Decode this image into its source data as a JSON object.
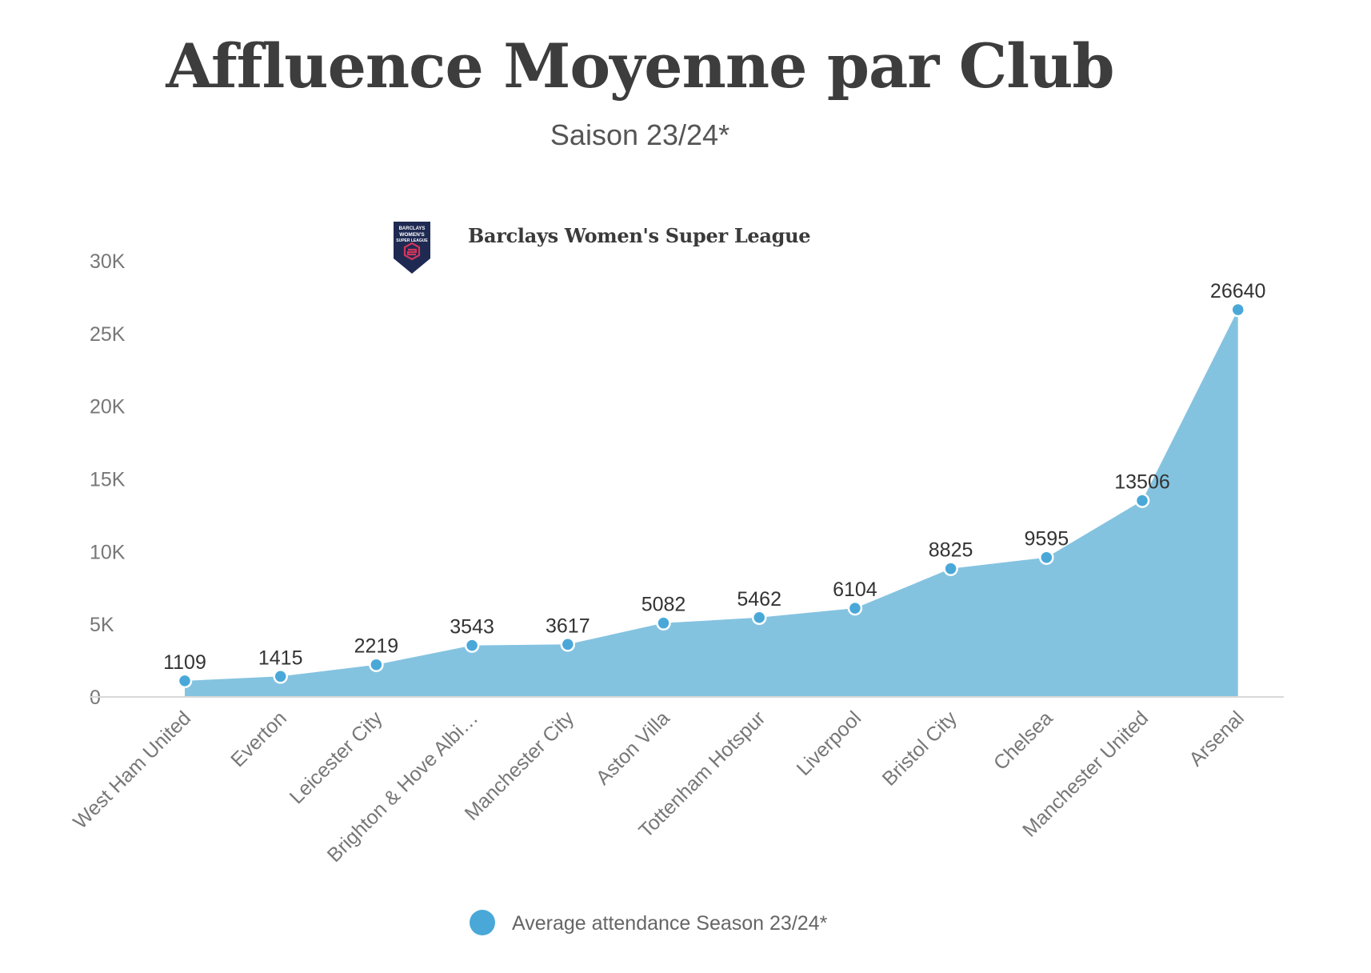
{
  "header": {
    "title": "Affluence Moyenne par Club",
    "subtitle": "Saison 23/24*",
    "league": "Barclays Women's Super League",
    "logo": {
      "name": "barclays-wsl-logo",
      "line1": "BARCLAYS",
      "line2": "WOMEN'S",
      "line3": "SUPER LEAGUE",
      "bg_color": "#1f2a52",
      "accent_color": "#d3365b"
    }
  },
  "chart_data": {
    "type": "area",
    "categories": [
      "West Ham United",
      "Everton",
      "Leicester City",
      "Brighton & Hove Albi…",
      "Manchester City",
      "Aston Villa",
      "Tottenham Hotspur",
      "Liverpool",
      "Bristol City",
      "Chelsea",
      "Manchester United",
      "Arsenal"
    ],
    "series": [
      {
        "name": "Average attendance Season 23/24*",
        "values": [
          1109,
          1415,
          2219,
          3543,
          3617,
          5082,
          5462,
          6104,
          8825,
          9595,
          13506,
          26640
        ],
        "labels": [
          "1109",
          "1415",
          "2219",
          "3543",
          "3617",
          "5082",
          "5462",
          "6104",
          "8825",
          "9595",
          "13506",
          "26640"
        ]
      }
    ],
    "ylim": [
      0,
      30000
    ],
    "yticks": [
      0,
      5000,
      10000,
      15000,
      20000,
      25000,
      30000
    ],
    "ytick_labels": [
      "0",
      "5K",
      "10K",
      "15K",
      "20K",
      "25K",
      "30K"
    ],
    "grid": false,
    "legend": "bottom-center",
    "colors": {
      "area": "#84c3e0",
      "marker": "#4aa8d8",
      "marker_stroke": "#ffffff",
      "axis": "#d8d8d8"
    }
  }
}
